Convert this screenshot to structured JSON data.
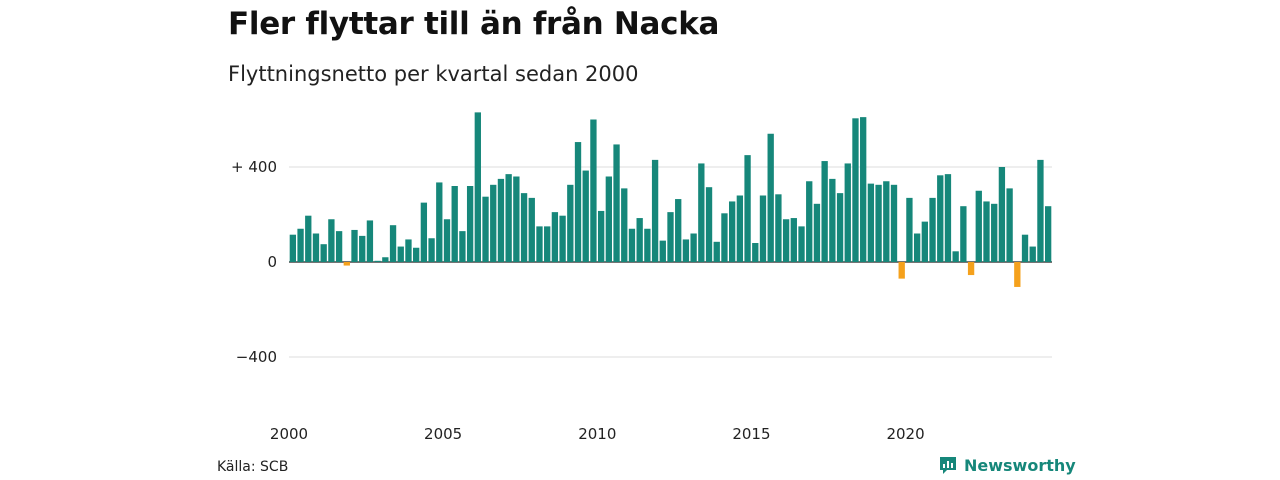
{
  "title": "Fler flyttar till än från Nacka",
  "subtitle": "Flyttningsnetto per kvartal sedan 2000",
  "source": "Källa: SCB",
  "brand": {
    "name": "Newsworthy",
    "icon": "newsworthy-logo-icon",
    "color": "#16877a"
  },
  "colors": {
    "positive": "#16877a",
    "negative": "#f5a11c",
    "grid": "#dddddd"
  },
  "chart_data": {
    "type": "bar",
    "title": "Fler flyttar till än från Nacka",
    "subtitle": "Flyttningsnetto per kvartal sedan 2000",
    "xlabel": "",
    "ylabel": "",
    "ylim": [
      -560,
      640
    ],
    "yticks": [
      {
        "value": 400,
        "label": "+ 400"
      },
      {
        "value": 0,
        "label": "0"
      },
      {
        "value": -400,
        "label": "−400"
      }
    ],
    "xticks": [
      {
        "value": 2000,
        "label": "2000"
      },
      {
        "value": 2005,
        "label": "2005"
      },
      {
        "value": 2010,
        "label": "2010"
      },
      {
        "value": 2015,
        "label": "2015"
      },
      {
        "value": 2020,
        "label": "2020"
      }
    ],
    "grid": true,
    "legend": "none",
    "x_start": 2000,
    "periods_per_year": 4,
    "values": [
      115,
      140,
      195,
      120,
      75,
      180,
      130,
      -15,
      135,
      110,
      175,
      5,
      20,
      155,
      65,
      95,
      60,
      250,
      100,
      335,
      180,
      320,
      130,
      320,
      630,
      275,
      325,
      350,
      370,
      360,
      290,
      270,
      150,
      150,
      210,
      195,
      325,
      505,
      385,
      600,
      215,
      360,
      495,
      310,
      140,
      185,
      140,
      430,
      90,
      210,
      265,
      95,
      120,
      415,
      315,
      85,
      205,
      255,
      280,
      450,
      80,
      280,
      540,
      285,
      180,
      185,
      150,
      340,
      245,
      425,
      350,
      290,
      415,
      605,
      610,
      330,
      325,
      340,
      325,
      -70,
      270,
      120,
      170,
      270,
      365,
      370,
      45,
      235,
      -55,
      300,
      255,
      245,
      400,
      310,
      -105,
      115,
      65,
      430,
      235
    ]
  }
}
